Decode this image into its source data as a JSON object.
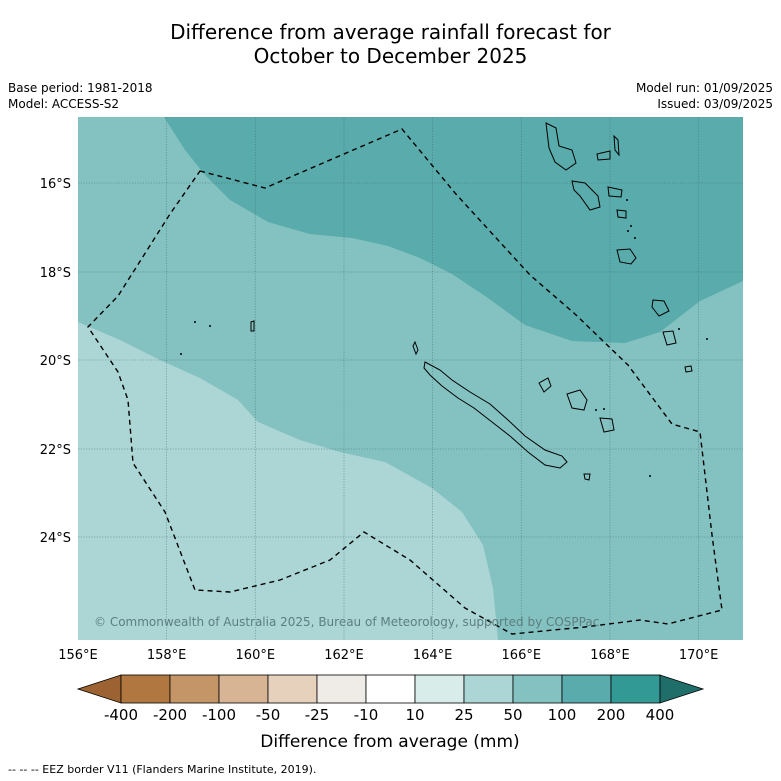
{
  "title_line1": "Difference from average rainfall forecast for",
  "title_line2": "October to December 2025",
  "base_period": "Base period: 1981-2018",
  "model": "Model: ACCESS-S2",
  "model_run": "Model run: 01/09/2025",
  "issued": "Issued: 03/09/2025",
  "map": {
    "lon_ticks": [
      "156°E",
      "158°E",
      "160°E",
      "162°E",
      "164°E",
      "166°E",
      "168°E",
      "170°E"
    ],
    "lat_ticks": [
      "16°S",
      "18°S",
      "20°S",
      "22°S",
      "24°S"
    ],
    "credit": "© Commonwealth of Australia 2025, Bureau of Meteorology, supported by COSPPac",
    "zone_colors": {
      "100_200": "#5aabab",
      "50_100": "#84c1c1",
      "25_50": "#acd5d5"
    }
  },
  "colorbar": {
    "labels": [
      "-400",
      "-200",
      "-100",
      "-50",
      "-25",
      "-10",
      "10",
      "25",
      "50",
      "100",
      "200",
      "400"
    ],
    "colors": [
      "#9c6231",
      "#b07840",
      "#c39567",
      "#d6b494",
      "#e6d1bd",
      "#efebe6",
      "#ffffff",
      "#d8ecea",
      "#acd5d5",
      "#84c1c1",
      "#5aabab",
      "#339994",
      "#206e6a"
    ],
    "title": "Difference from average (mm)"
  },
  "footnote": "--  --  -- EEZ border V11 (Flanders Marine Institute, 2019)."
}
